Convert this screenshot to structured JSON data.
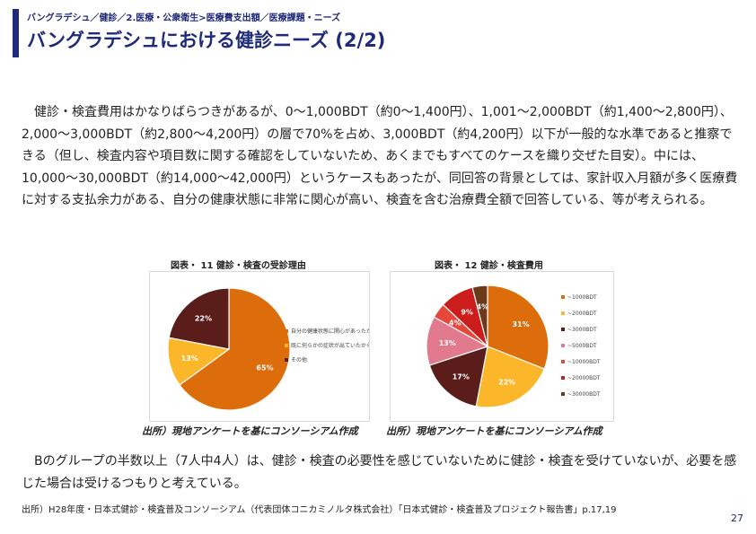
{
  "header": {
    "breadcrumb": "バングラデシュ／健診／2.医療・公衆衛生>医療費支出額／医療課題・ニーズ",
    "title": "バングラデシュにおける健診ニーズ (2/2)"
  },
  "body": {
    "paragraph1": "健診・検査費用はかなりばらつきがあるが、0～1,000BDT（約0～1,400円）、1,001～2,000BDT（約1,400～2,800円）、2,000～3,000BDT（約2,800～4,200円）の層で70%を占め、3,000BDT（約4,200円）以下が一般的な水準であると推察できる（但し、検査内容や項目数に関する確認をしていないため、あくまでもすべてのケースを織り交ぜた目安）。中には、10,000～30,000BDT（約14,000～42,000円）というケースもあったが、同回答の背景としては、家計収入月額が多く医療費に対する支払余力がある、自分の健康状態に非常に関心が高い、検査を含む治療費全額で回答している、等が考えられる。",
    "paragraph2": "Bのグループの半数以上（7人中4人）は、健診・検査の必要性を感じていないために健診・検査を受けていないが、必要を感じた場合は受けるつもりと考えている。"
  },
  "figures": {
    "fig11": {
      "title": "図表・ 11 健診・検査の受診理由",
      "source": "出所）現地アンケートを基にコンソーシアム作成"
    },
    "fig12": {
      "title": "図表・ 12 健診・検査費用",
      "source": "出所）現地アンケートを基にコンソーシアム作成"
    }
  },
  "footer": {
    "source": "出所）H28年度・日本式健診・検査普及コンソーシアム（代表団体コニカミノルタ株式会社）「日本式健診・検査普及プロジェクト報告書」p.17,19",
    "page": "27"
  },
  "chart_data": [
    {
      "type": "pie",
      "title": "図表・ 11 健診・検査の受診理由",
      "categories": [
        "自分の健康状態に関心があったから",
        "既に何らかの症状が出ていたから",
        "その他"
      ],
      "values": [
        65,
        13,
        22
      ],
      "labels": [
        "65%",
        "13%",
        "22%"
      ],
      "colors": [
        "#dd6d0b",
        "#fbb62a",
        "#5a1d1a"
      ],
      "legend": "right"
    },
    {
      "type": "pie",
      "title": "図表・ 12 健診・検査費用",
      "categories": [
        "~1000BDT",
        "~2000BDT",
        "~3000BDT",
        "~5000BDT",
        "~10000BDT",
        "~20000BDT",
        "~30000BDT"
      ],
      "values": [
        31,
        22,
        17,
        13,
        4,
        9,
        4
      ],
      "labels": [
        "31%",
        "22%",
        "17%",
        "13%",
        "4%",
        "9%",
        "4%"
      ],
      "colors": [
        "#dd6d0b",
        "#fbb62a",
        "#5a1d1a",
        "#e27a8e",
        "#e5473a",
        "#cc1d1d",
        "#6b3a1b"
      ],
      "legend": "right"
    }
  ]
}
